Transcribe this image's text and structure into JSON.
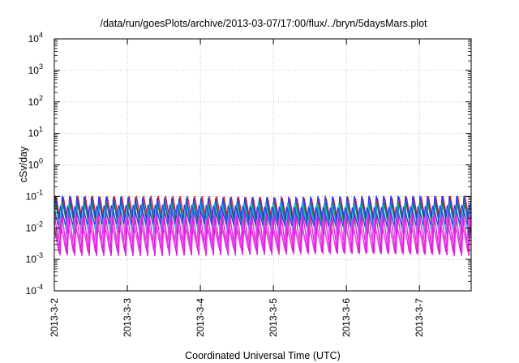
{
  "chart_data": {
    "type": "line",
    "title": "/data/run/goesPlots/archive/2013-03-07/17:00/flux/../bryn/5daysMars.plot",
    "xlabel": "Coordinated Universal Time (UTC)",
    "ylabel": "cSv/day",
    "yscale": "log",
    "ylim": [
      0.0001,
      10000
    ],
    "y_ticks": [
      {
        "value": 0.0001,
        "base": "10",
        "exp": "-4"
      },
      {
        "value": 0.001,
        "base": "10",
        "exp": "-3"
      },
      {
        "value": 0.01,
        "base": "10",
        "exp": "-2"
      },
      {
        "value": 0.1,
        "base": "10",
        "exp": "-1"
      },
      {
        "value": 1,
        "base": "10",
        "exp": "0"
      },
      {
        "value": 10,
        "base": "10",
        "exp": "1"
      },
      {
        "value": 100,
        "base": "10",
        "exp": "2"
      },
      {
        "value": 1000,
        "base": "10",
        "exp": "3"
      },
      {
        "value": 10000,
        "base": "10",
        "exp": "4"
      }
    ],
    "xlim": [
      "2013-03-02T00:00",
      "2013-03-07T17:00"
    ],
    "x_ticks": [
      "2013-3-2",
      "2013-3-3",
      "2013-3-4",
      "2013-3-5",
      "2013-3-6",
      "2013-3-7"
    ],
    "grid": true,
    "legend": "none",
    "oscillation_period_hours": 2.4,
    "series": [
      {
        "color": "#d0202a",
        "peak": 0.1,
        "trough": 0.009
      },
      {
        "color": "#1b8f3a",
        "peak": 0.06,
        "trough": 0.006
      },
      {
        "color": "#2a3fe0",
        "peak": 0.1,
        "trough": 0.01
      },
      {
        "color": "#e020e0",
        "peak": 0.03,
        "trough": 0.0013
      },
      {
        "color": "#20b8d8",
        "peak": 0.06,
        "trough": 0.007
      },
      {
        "color": "#e020e0",
        "peak": 0.015,
        "trough": 0.0017
      },
      {
        "color": "#2a3fe0",
        "peak": 0.05,
        "trough": 0.012
      },
      {
        "color": "#f040f0",
        "peak": 0.02,
        "trough": 0.0025
      }
    ]
  }
}
